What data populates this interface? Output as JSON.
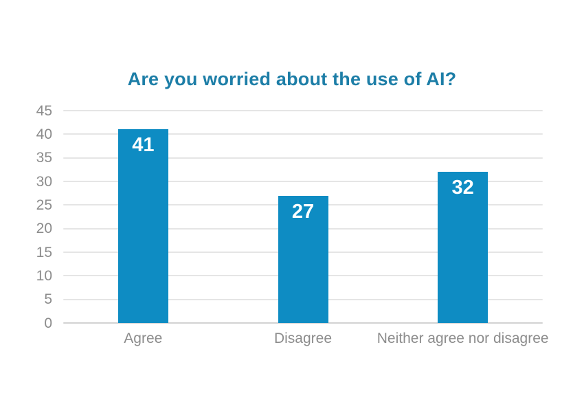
{
  "page": {
    "background": "#ffffff"
  },
  "chart_data": {
    "type": "bar",
    "title": "Are you worried about the use of AI?",
    "categories": [
      "Agree",
      "Disagree",
      "Neither agree nor disagree"
    ],
    "values": [
      41,
      27,
      32
    ],
    "value_labels": [
      "41",
      "27",
      "32"
    ],
    "xlabel": "",
    "ylabel": "",
    "ylim": [
      0,
      45
    ],
    "yticks": [
      0,
      5,
      10,
      15,
      20,
      25,
      30,
      35,
      40,
      45
    ],
    "grid": true,
    "legend": "none",
    "colors": {
      "bar": "#0e8cc3",
      "title": "#1d7ea7",
      "axis_label": "#8c8c8c",
      "gridline": "#e5e5e5",
      "baseline": "#d2d2d2",
      "value_label": "#ffffff"
    }
  }
}
